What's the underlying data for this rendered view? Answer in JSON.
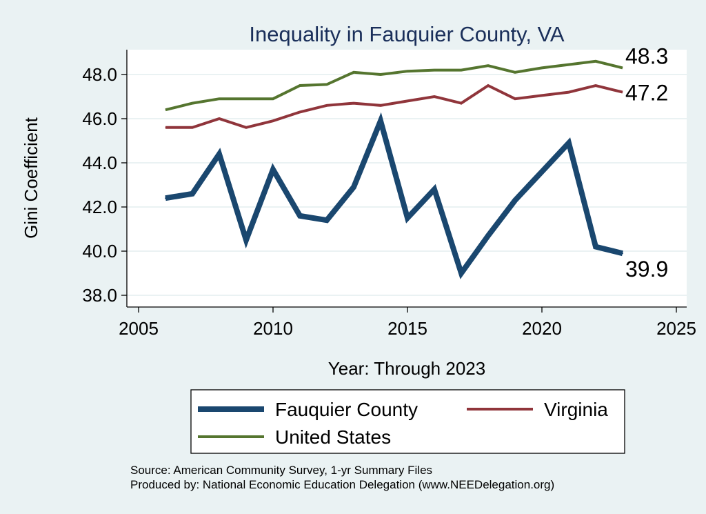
{
  "chart_data": {
    "type": "line",
    "title": "Inequality in Fauquier County, VA",
    "xlabel": "Year: Through 2023",
    "ylabel": "Gini Coefficient",
    "xlim": [
      2005,
      2025
    ],
    "ylim": [
      38.0,
      49.0
    ],
    "xticks": [
      "2005",
      "2010",
      "2015",
      "2020",
      "2025"
    ],
    "yticks": [
      "38.0",
      "40.0",
      "42.0",
      "44.0",
      "46.0",
      "48.0"
    ],
    "grid": true,
    "legend_position": "bottom",
    "x": [
      2006,
      2007,
      2008,
      2009,
      2010,
      2011,
      2012,
      2013,
      2014,
      2015,
      2016,
      2017,
      2018,
      2019,
      2020,
      2021,
      2022,
      2023
    ],
    "series": [
      {
        "name": "Fauquier County",
        "color": "#1a476f",
        "values": [
          42.4,
          42.6,
          44.4,
          40.5,
          43.7,
          41.6,
          41.4,
          42.9,
          45.9,
          41.5,
          42.8,
          39.0,
          40.7,
          42.3,
          43.6,
          44.9,
          40.2,
          39.9
        ],
        "end_label": "39.9"
      },
      {
        "name": "Virginia",
        "color": "#90353b",
        "values": [
          45.6,
          45.6,
          46.0,
          45.6,
          45.9,
          46.3,
          46.6,
          46.7,
          46.6,
          46.8,
          47.0,
          46.7,
          47.5,
          46.9,
          47.05,
          47.2,
          47.5,
          47.2
        ],
        "end_label": "47.2"
      },
      {
        "name": "United States",
        "color": "#55752f",
        "values": [
          46.4,
          46.7,
          46.9,
          46.9,
          46.9,
          47.5,
          47.55,
          48.1,
          48.0,
          48.15,
          48.2,
          48.2,
          48.4,
          48.1,
          48.3,
          48.45,
          48.6,
          48.3
        ],
        "end_label": "48.3"
      }
    ],
    "notes": [
      "Source: American Community Survey, 1-yr Summary Files",
      "Produced by: National Economic Education Delegation (www.NEEDelegation.org)"
    ]
  }
}
